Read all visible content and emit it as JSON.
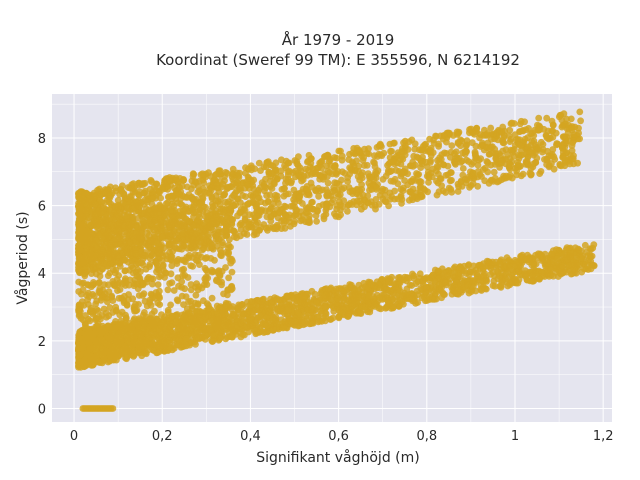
{
  "chart_data": {
    "type": "scatter",
    "title_line1": "År 1979 - 2019",
    "title_line2": "Koordinat (Sweref 99 TM): E 355596, N 6214192",
    "xlabel": "Signifikant våghöjd (m)",
    "ylabel": "Vågperiod (s)",
    "xlim": [
      -0.05,
      1.22
    ],
    "ylim": [
      -0.4,
      9.3
    ],
    "x_ticks": [
      0,
      0.2,
      0.4,
      0.6,
      0.8,
      1,
      1.2
    ],
    "x_tick_labels": [
      "0",
      "0,2",
      "0,4",
      "0,6",
      "0,8",
      "1",
      "1,2"
    ],
    "y_ticks": [
      0,
      2,
      4,
      6,
      8
    ],
    "y_tick_labels": [
      "0",
      "2",
      "4",
      "6",
      "8"
    ],
    "grid": true,
    "legend": "none",
    "point_color": "#d4a421",
    "background_color": "#e5e5ef",
    "clusters": [
      {
        "x_range": [
          0.01,
          1.18
        ],
        "y_at_x_start": [
          1.2,
          2.3
        ],
        "y_at_x_end": [
          4.1,
          4.9
        ],
        "description_points": 2200
      },
      {
        "x_range": [
          0.01,
          1.15
        ],
        "y_at_x_start": [
          4.0,
          6.4
        ],
        "y_at_x_end": [
          7.2,
          8.8
        ],
        "description_points": 2200
      },
      {
        "x_range": [
          0.02,
          0.09
        ],
        "y_value": 0
      }
    ]
  }
}
